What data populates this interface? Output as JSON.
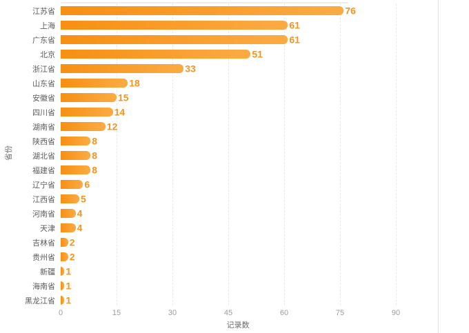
{
  "chart": {
    "y_axis_title": "省份",
    "x_axis_title": "记录数"
  },
  "chart_data": {
    "type": "bar",
    "orientation": "horizontal",
    "title": "",
    "xlabel": "记录数",
    "ylabel": "省份",
    "categories": [
      "江苏省",
      "上海",
      "广东省",
      "北京",
      "浙江省",
      "山东省",
      "安徽省",
      "四川省",
      "湖南省",
      "陕西省",
      "湖北省",
      "福建省",
      "辽宁省",
      "江西省",
      "河南省",
      "天津",
      "吉林省",
      "贵州省",
      "新疆",
      "海南省",
      "黑龙江省"
    ],
    "values": [
      76,
      61,
      61,
      51,
      33,
      18,
      15,
      14,
      12,
      8,
      8,
      8,
      6,
      5,
      4,
      4,
      2,
      2,
      1,
      1,
      1
    ],
    "value_labels_shown": true,
    "xlim": [
      0,
      100
    ],
    "xticks": [
      0,
      15,
      30,
      45,
      60,
      75,
      90
    ],
    "grid": "dashed-vertical",
    "legend": "none",
    "colors": {
      "bar_gradient_start": "#f78f13",
      "bar_gradient_end": "#fbab44",
      "value_label": "#f7941e",
      "category_label": "#5c5c5c",
      "tick_label": "#9c9c9c",
      "axis_title": "#6b6b6b",
      "gridline": "#e9e9e9",
      "panel_divider": "#e4e4e4",
      "background": "#ffffff"
    }
  }
}
